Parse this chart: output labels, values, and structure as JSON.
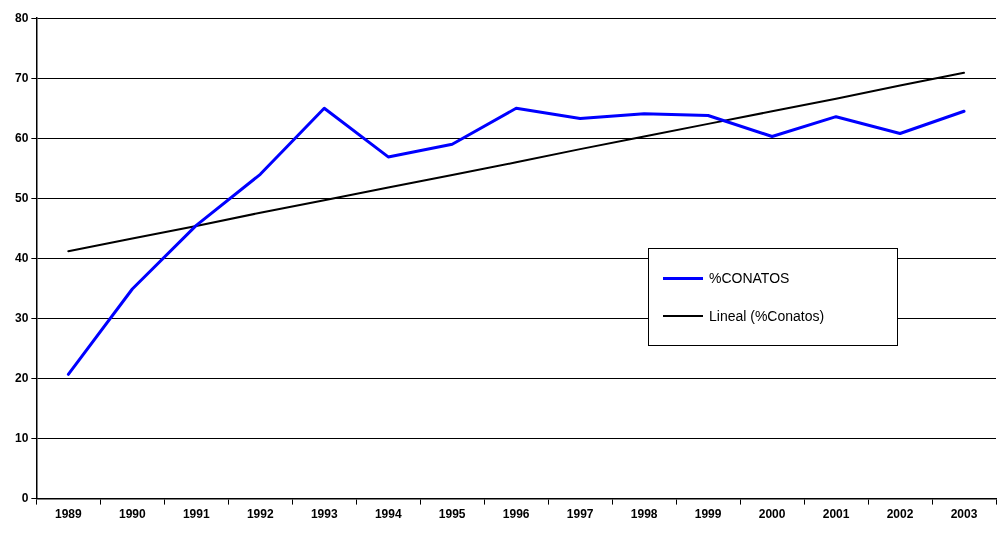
{
  "chart_data": {
    "type": "line",
    "categories": [
      "1989",
      "1990",
      "1991",
      "1992",
      "1993",
      "1994",
      "1995",
      "1996",
      "1997",
      "1998",
      "1999",
      "2000",
      "2001",
      "2002",
      "2003"
    ],
    "series": [
      {
        "name": "%CONATOS",
        "color": "#0000ff",
        "values": [
          20.7,
          34.9,
          45.5,
          54,
          65,
          56.9,
          59,
          65,
          63.3,
          64.1,
          63.8,
          60.3,
          63.6,
          60.8,
          64.5
        ]
      },
      {
        "name": "Lineal (%Conatos)",
        "color": "#000000",
        "values": [
          41.2,
          43.3,
          45.4,
          47.6,
          49.7,
          51.8,
          53.9,
          56.0,
          58.2,
          60.3,
          62.4,
          64.5,
          66.6,
          68.8,
          70.9
        ]
      }
    ],
    "ylim": [
      0,
      80
    ],
    "yticks": [
      0,
      10,
      20,
      30,
      40,
      50,
      60,
      70,
      80
    ],
    "grid": "y",
    "legend": "right",
    "marker": "none",
    "line_style": "solid"
  }
}
